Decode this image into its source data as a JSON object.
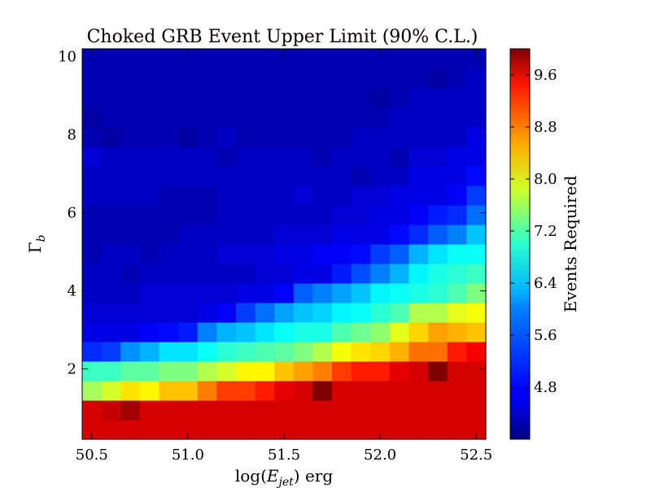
{
  "chart_data": {
    "type": "heatmap",
    "title": "Choked GRB Event Upper Limit (90% C.L.)",
    "xlabel_prefix": "log(",
    "xlabel_var": "E",
    "xlabel_sub": "jet",
    "xlabel_suffix": ") erg",
    "ylabel_var": "Γ",
    "ylabel_sub": "b",
    "colorbar_label": "Events Required",
    "xlim": [
      50.45,
      52.55
    ],
    "ylim": [
      0.2,
      10.2
    ],
    "x_ticks": [
      50.5,
      51.0,
      51.5,
      52.0,
      52.5
    ],
    "x_tick_labels": [
      "50.5",
      "51.0",
      "51.5",
      "52.0",
      "52.5"
    ],
    "y_ticks": [
      2,
      4,
      6,
      8,
      10
    ],
    "y_tick_labels": [
      "2",
      "4",
      "6",
      "8",
      "10"
    ],
    "color_range": [
      4.0,
      10.0
    ],
    "colorbar_ticks": [
      4.8,
      5.6,
      6.4,
      7.2,
      8.0,
      8.8,
      9.6
    ],
    "colorbar_tick_labels": [
      "4.8",
      "5.6",
      "6.4",
      "7.2",
      "8.0",
      "8.8",
      "9.6"
    ],
    "colormap": "jet",
    "x_edges": [
      50.45,
      50.55,
      50.65,
      50.75,
      50.85,
      50.95,
      51.05,
      51.15,
      51.25,
      51.35,
      51.45,
      51.55,
      51.65,
      51.75,
      51.85,
      51.95,
      52.05,
      52.15,
      52.25,
      52.35,
      52.45,
      52.55
    ],
    "y_edges": [
      0.2,
      0.7,
      1.2,
      1.7,
      2.2,
      2.7,
      3.2,
      3.7,
      4.2,
      4.7,
      5.2,
      5.7,
      6.2,
      6.7,
      7.2,
      7.7,
      8.2,
      8.7,
      9.2,
      9.7,
      10.2
    ],
    "z": [
      [
        9.5,
        9.5,
        9.5,
        9.5,
        9.5,
        9.5,
        9.5,
        9.5,
        9.5,
        9.5,
        9.5,
        9.5,
        9.5,
        9.5,
        9.5,
        9.5,
        9.5,
        9.5,
        9.5,
        9.5,
        9.5
      ],
      [
        9.5,
        9.6,
        9.8,
        9.5,
        9.5,
        9.5,
        9.5,
        9.5,
        9.5,
        9.5,
        9.5,
        9.5,
        9.5,
        9.5,
        9.5,
        9.5,
        9.5,
        9.5,
        9.5,
        9.5,
        9.5
      ],
      [
        7.2,
        7.5,
        7.9,
        7.8,
        8.1,
        8.1,
        8.5,
        8.9,
        8.9,
        9.1,
        9.4,
        9.5,
        10.0,
        9.5,
        9.5,
        9.5,
        9.5,
        9.5,
        9.5,
        9.5,
        9.5
      ],
      [
        6.6,
        6.6,
        6.8,
        6.8,
        7.0,
        7.0,
        7.3,
        7.5,
        7.8,
        7.8,
        8.1,
        8.3,
        8.5,
        8.9,
        9.1,
        9.1,
        9.4,
        9.5,
        10.0,
        9.5,
        9.5
      ],
      [
        5.0,
        5.1,
        5.6,
        5.8,
        6.1,
        6.1,
        6.3,
        6.5,
        6.6,
        6.7,
        6.8,
        7.0,
        7.3,
        7.7,
        7.9,
        8.0,
        8.2,
        8.6,
        8.6,
        9.1,
        9.3
      ],
      [
        4.6,
        4.6,
        4.6,
        4.7,
        4.8,
        4.9,
        5.5,
        5.8,
        5.9,
        6.1,
        6.3,
        6.4,
        6.4,
        6.7,
        6.9,
        7.1,
        7.6,
        8.0,
        8.3,
        8.2,
        8.1
      ],
      [
        4.5,
        4.5,
        4.5,
        4.5,
        4.5,
        4.5,
        4.6,
        4.7,
        5.1,
        5.4,
        5.7,
        5.9,
        6.0,
        6.2,
        6.3,
        6.5,
        6.7,
        7.3,
        7.3,
        7.6,
        7.7
      ],
      [
        4.4,
        4.4,
        4.4,
        4.5,
        4.5,
        4.5,
        4.5,
        4.5,
        4.6,
        4.6,
        4.7,
        5.3,
        5.5,
        5.7,
        5.9,
        6.2,
        6.3,
        6.4,
        6.5,
        6.7,
        7.0
      ],
      [
        4.4,
        4.4,
        4.3,
        4.4,
        4.4,
        4.4,
        4.4,
        4.4,
        4.4,
        4.5,
        4.5,
        4.6,
        4.6,
        4.9,
        5.2,
        5.5,
        5.8,
        6.2,
        6.4,
        6.5,
        6.6
      ],
      [
        4.3,
        4.4,
        4.4,
        4.3,
        4.4,
        4.4,
        4.4,
        4.5,
        4.5,
        4.5,
        4.6,
        4.6,
        4.7,
        4.7,
        4.8,
        5.1,
        5.3,
        5.8,
        6.1,
        6.3,
        6.3
      ],
      [
        4.3,
        4.3,
        4.3,
        4.3,
        4.3,
        4.4,
        4.4,
        4.4,
        4.4,
        4.4,
        4.5,
        4.5,
        4.5,
        4.6,
        4.6,
        4.6,
        4.8,
        5.0,
        5.3,
        5.5,
        5.9
      ],
      [
        4.3,
        4.3,
        4.3,
        4.3,
        4.3,
        4.3,
        4.3,
        4.4,
        4.4,
        4.4,
        4.4,
        4.4,
        4.4,
        4.5,
        4.5,
        4.6,
        4.6,
        4.7,
        4.9,
        5.0,
        5.4
      ],
      [
        4.4,
        4.4,
        4.4,
        4.4,
        4.3,
        4.3,
        4.3,
        4.4,
        4.4,
        4.4,
        4.4,
        4.5,
        4.4,
        4.4,
        4.5,
        4.5,
        4.6,
        4.6,
        4.6,
        4.7,
        5.1
      ],
      [
        4.4,
        4.4,
        4.4,
        4.4,
        4.4,
        4.4,
        4.4,
        4.4,
        4.4,
        4.4,
        4.4,
        4.4,
        4.4,
        4.4,
        4.3,
        4.4,
        4.4,
        4.6,
        4.6,
        4.6,
        4.8
      ],
      [
        4.5,
        4.4,
        4.4,
        4.4,
        4.4,
        4.4,
        4.4,
        4.3,
        4.4,
        4.4,
        4.4,
        4.4,
        4.3,
        4.4,
        4.4,
        4.4,
        4.3,
        4.5,
        4.5,
        4.6,
        4.6
      ],
      [
        4.3,
        4.2,
        4.3,
        4.3,
        4.3,
        4.2,
        4.3,
        4.4,
        4.3,
        4.3,
        4.3,
        4.3,
        4.3,
        4.3,
        4.4,
        4.4,
        4.4,
        4.4,
        4.4,
        4.4,
        4.6
      ],
      [
        4.2,
        4.3,
        4.3,
        4.3,
        4.3,
        4.3,
        4.3,
        4.3,
        4.3,
        4.3,
        4.3,
        4.3,
        4.3,
        4.3,
        4.3,
        4.3,
        4.4,
        4.4,
        4.4,
        4.4,
        4.4
      ],
      [
        4.3,
        4.3,
        4.3,
        4.3,
        4.3,
        4.3,
        4.3,
        4.3,
        4.3,
        4.3,
        4.3,
        4.3,
        4.3,
        4.3,
        4.3,
        4.2,
        4.3,
        4.4,
        4.4,
        4.4,
        4.4
      ],
      [
        4.3,
        4.3,
        4.3,
        4.3,
        4.3,
        4.3,
        4.3,
        4.3,
        4.3,
        4.3,
        4.3,
        4.3,
        4.3,
        4.3,
        4.3,
        4.3,
        4.3,
        4.3,
        4.2,
        4.3,
        4.4
      ],
      [
        4.3,
        4.3,
        4.3,
        4.3,
        4.3,
        4.3,
        4.3,
        4.3,
        4.3,
        4.3,
        4.3,
        4.3,
        4.3,
        4.3,
        4.3,
        4.3,
        4.3,
        4.3,
        4.3,
        4.3,
        4.3
      ]
    ]
  }
}
